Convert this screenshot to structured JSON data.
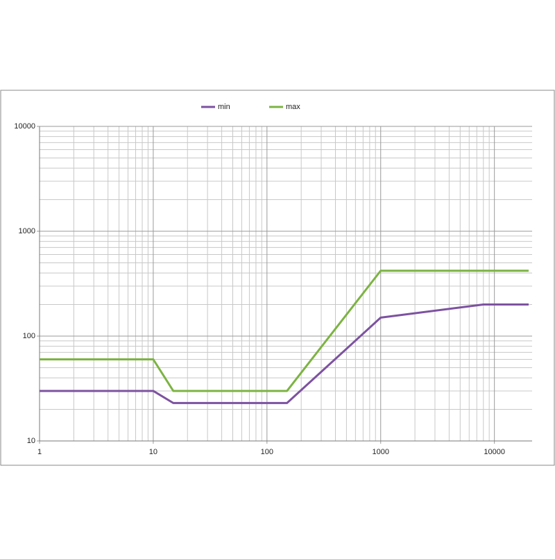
{
  "chart_data": {
    "type": "line",
    "log_x": true,
    "log_y": true,
    "grid": true,
    "minor_grid": true,
    "legend": "top",
    "xlim": [
      1,
      20000
    ],
    "xticks": [
      1,
      10,
      100,
      1000,
      10000
    ],
    "ylim": [
      10,
      10000
    ],
    "yticks": [
      10,
      100,
      1000,
      10000
    ],
    "series": [
      {
        "name": "min",
        "color": "#7d52a0",
        "x": [
          1,
          10,
          15,
          150,
          1000,
          8000,
          20000
        ],
        "values": [
          30,
          30,
          23,
          23,
          150,
          200,
          200
        ]
      },
      {
        "name": "max",
        "color": "#7cb342",
        "x": [
          1,
          10,
          15,
          150,
          1000,
          20000
        ],
        "values": [
          60,
          60,
          30,
          30,
          420,
          420
        ]
      }
    ]
  }
}
